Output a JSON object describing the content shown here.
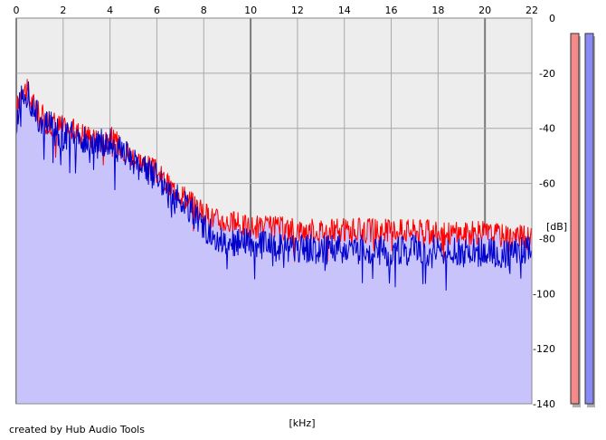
{
  "credit": "created by Hub Audio Tools",
  "chart_data": {
    "type": "area",
    "title": "",
    "xlabel": "[kHz]",
    "ylabel": "[dB]",
    "xlim": [
      0,
      22
    ],
    "ylim": [
      -140,
      0
    ],
    "x_ticks": [
      0,
      2,
      4,
      6,
      8,
      10,
      12,
      14,
      16,
      18,
      20,
      22
    ],
    "y_ticks": [
      0,
      -20,
      -40,
      -60,
      -80,
      -100,
      -120,
      -140
    ],
    "grid": true,
    "plot_background": "#ededed",
    "colors": {
      "fill": "#c8c4fb",
      "channel_1": "#ff0000",
      "channel_2": "#0000cc",
      "meter_1": "#f58a8a",
      "meter_2": "#8a8af5"
    },
    "series": [
      {
        "x": [
          0,
          0.25,
          0.5,
          1,
          1.5,
          2,
          2.5,
          3,
          3.5,
          4,
          4.5,
          5,
          5.5,
          6,
          6.5,
          7,
          7.5,
          8,
          8.5,
          9,
          10,
          11,
          12,
          13,
          14,
          15,
          16,
          17,
          18,
          19,
          20,
          21,
          22
        ],
        "values": [
          -35,
          -24,
          -28,
          -36,
          -38,
          -40,
          -41,
          -42,
          -45,
          -43,
          -47,
          -50,
          -53,
          -56,
          -61,
          -63,
          -67,
          -71,
          -73,
          -74,
          -76,
          -76,
          -77,
          -77,
          -77,
          -77,
          -77,
          -77,
          -78,
          -78,
          -78,
          -79,
          -80
        ]
      },
      {
        "x": [
          0,
          0.25,
          0.5,
          1,
          1.5,
          2,
          2.5,
          3,
          3.5,
          4,
          4.5,
          5,
          5.5,
          6,
          6.5,
          7,
          7.5,
          8,
          8.5,
          9,
          10,
          11,
          12,
          13,
          14,
          15,
          16,
          17,
          18,
          19,
          20,
          21,
          22
        ],
        "values": [
          -36,
          -26,
          -29,
          -38,
          -40,
          -42,
          -43,
          -44,
          -46,
          -44,
          -49,
          -52,
          -55,
          -58,
          -63,
          -66,
          -70,
          -76,
          -79,
          -81,
          -82,
          -83,
          -84,
          -84,
          -84,
          -84,
          -85,
          -84,
          -84,
          -85,
          -85,
          -86,
          -83
        ]
      }
    ],
    "level_meters": [
      {
        "level": -140
      },
      {
        "level": -140
      }
    ]
  }
}
